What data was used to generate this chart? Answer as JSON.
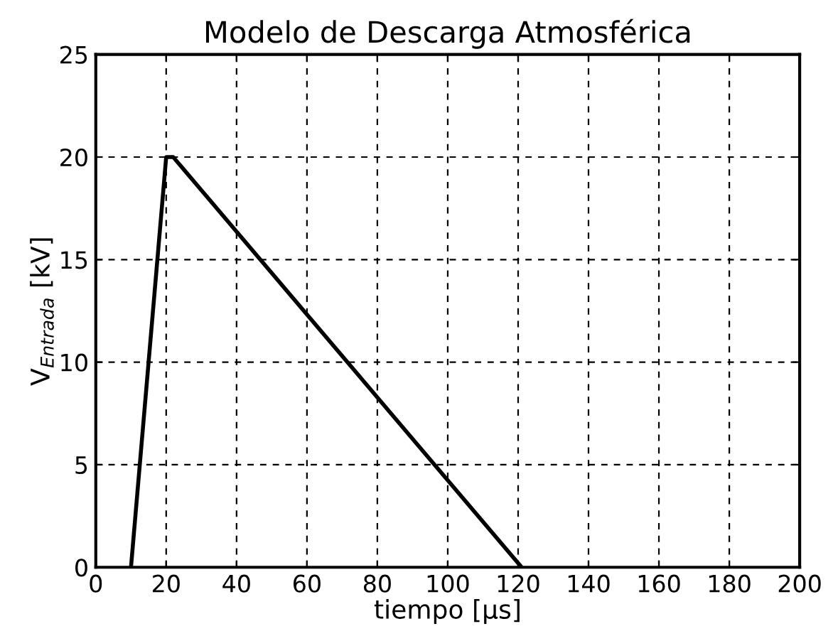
{
  "chart_data": {
    "type": "line",
    "title": "Modelo de Descarga Atmosférica",
    "xlabel": "tiempo [μs]",
    "ylabel": "V$_{Entrada}$ [kV]",
    "x": [
      10,
      20,
      22,
      121
    ],
    "series": [
      {
        "color": "#000000",
        "values": [
          0,
          20,
          20,
          0
        ]
      }
    ],
    "xlim": [
      0,
      200
    ],
    "xticks": [
      0,
      20,
      40,
      60,
      80,
      100,
      120,
      140,
      160,
      180,
      200
    ],
    "ylim": [
      0,
      25
    ],
    "yticks": [
      0,
      5,
      10,
      15,
      20,
      25
    ],
    "grid": true,
    "line_style": "solid",
    "marker": "none"
  }
}
